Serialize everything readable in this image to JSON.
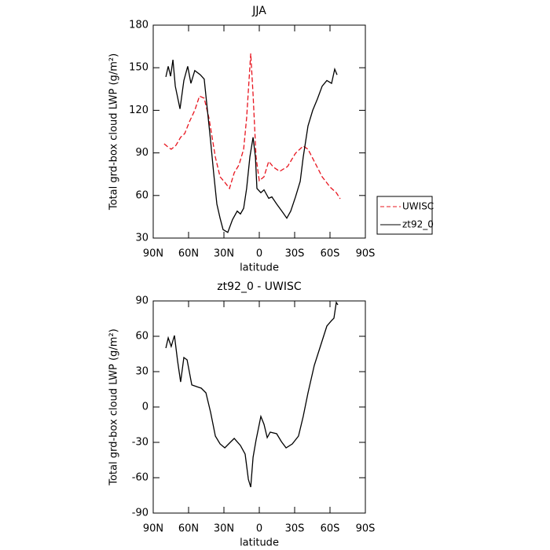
{
  "chart_data": [
    {
      "type": "line",
      "title": "JJA",
      "xlabel": "latitude",
      "ylabel": "Total grd-box cloud LWP (g/m²)",
      "xlim": [
        90,
        -90
      ],
      "xticks": [
        {
          "value": 90,
          "label": "90N"
        },
        {
          "value": 60,
          "label": "60N"
        },
        {
          "value": 30,
          "label": "30N"
        },
        0,
        {
          "value": -30,
          "label": "30S"
        },
        {
          "value": -60,
          "label": "60S"
        },
        {
          "value": -90,
          "label": "90S"
        }
      ],
      "ylim": [
        30,
        180
      ],
      "yticks": [
        30,
        60,
        90,
        120,
        150,
        180
      ],
      "legend": "right",
      "series": [
        {
          "name": "UWISC",
          "color": "#e8141e",
          "dash": true,
          "x": [
            80.7,
            77.3,
            74.7,
            70.7,
            66.7,
            63.3,
            59.3,
            54.7,
            50.7,
            46.7,
            42.7,
            40,
            37.3,
            33.3,
            29.3,
            25.3,
            21.3,
            17.3,
            13.3,
            10.7,
            7.3,
            5.3,
            2.7,
            0,
            -4,
            -8,
            -12,
            -17.3,
            -24,
            -30.7,
            -37.3,
            -41.3,
            -46.7,
            -53.3,
            -60,
            -65.3,
            -68.7
          ],
          "values": [
            96.4,
            94,
            92.6,
            95.3,
            101,
            103.6,
            112,
            120,
            130,
            128.5,
            114.7,
            100.9,
            87,
            73.2,
            69.3,
            65,
            76,
            81.5,
            92.6,
            114.7,
            160,
            131,
            87,
            70.4,
            73.2,
            84,
            80,
            77,
            80.4,
            89.8,
            94.8,
            92.6,
            84,
            73.2,
            66,
            62,
            57.7
          ]
        },
        {
          "name": "zt92_0",
          "color": "#000000",
          "dash": false,
          "x": [
            79.3,
            77.3,
            75.3,
            73.3,
            71.3,
            67.3,
            64,
            60.7,
            58,
            54.7,
            50,
            46.7,
            44,
            41.3,
            38.7,
            36,
            33.3,
            30.7,
            26.7,
            22.7,
            18.7,
            16,
            13.3,
            10.7,
            8,
            5.3,
            3.3,
            2,
            -1.3,
            -4,
            -8,
            -10.7,
            -14.7,
            -20,
            -23.3,
            -26.7,
            -30.7,
            -34.7,
            -37.3,
            -41.3,
            -45.3,
            -49.3,
            -53.3,
            -57.3,
            -61.3,
            -64,
            -66
          ],
          "values": [
            143.5,
            151,
            144,
            155.6,
            137,
            121,
            141,
            151,
            139,
            148,
            145,
            142,
            120,
            98,
            76,
            54,
            44,
            36,
            34,
            43,
            49,
            47,
            51,
            65,
            87,
            101,
            87,
            65,
            62,
            64,
            58,
            59,
            54,
            48,
            44,
            49,
            59,
            70,
            87,
            109,
            120,
            128,
            137,
            141,
            139,
            149,
            145
          ]
        }
      ]
    },
    {
      "type": "line",
      "title": "zt92_0 - UWISC",
      "xlabel": "latitude",
      "ylabel": "Total grd-box cloud LWP (g/m²)",
      "xlim": [
        90,
        -90
      ],
      "xticks": [
        {
          "value": 90,
          "label": "90N"
        },
        {
          "value": 60,
          "label": "60N"
        },
        {
          "value": 30,
          "label": "30N"
        },
        0,
        {
          "value": -30,
          "label": "30S"
        },
        {
          "value": -60,
          "label": "60S"
        },
        {
          "value": -90,
          "label": "90S"
        }
      ],
      "ylim": [
        -90,
        90
      ],
      "yticks": [
        -90,
        -60,
        -30,
        0,
        30,
        60,
        90
      ],
      "series": [
        {
          "color": "#000000",
          "dash": false,
          "x": [
            79.3,
            77.3,
            74.7,
            72,
            69.3,
            66.7,
            64,
            61.3,
            57.3,
            53.3,
            49.3,
            45.3,
            41.3,
            37.3,
            33.3,
            29.3,
            24,
            21.3,
            16,
            12,
            9.3,
            7.3,
            5.3,
            2.7,
            -1.3,
            -4,
            -6.7,
            -9.3,
            -14.7,
            -18.7,
            -22.7,
            -28,
            -33.3,
            -37.3,
            -41.3,
            -46.7,
            -52,
            -57.3,
            -61.3,
            -63.3,
            -65.3,
            -66.7
          ],
          "values": [
            50,
            58.7,
            51.3,
            60.7,
            38.7,
            21.3,
            42,
            40,
            18.7,
            17.3,
            16,
            12,
            -4.7,
            -24.7,
            -31.3,
            -34.7,
            -29.3,
            -26.7,
            -32.7,
            -40,
            -61.3,
            -68,
            -42.7,
            -28,
            -8,
            -14.7,
            -26,
            -21.3,
            -22.7,
            -29.3,
            -34.7,
            -31.3,
            -24.7,
            -8,
            12,
            35.3,
            52,
            68.7,
            73.3,
            75.3,
            88.7,
            86.7
          ]
        }
      ]
    }
  ]
}
